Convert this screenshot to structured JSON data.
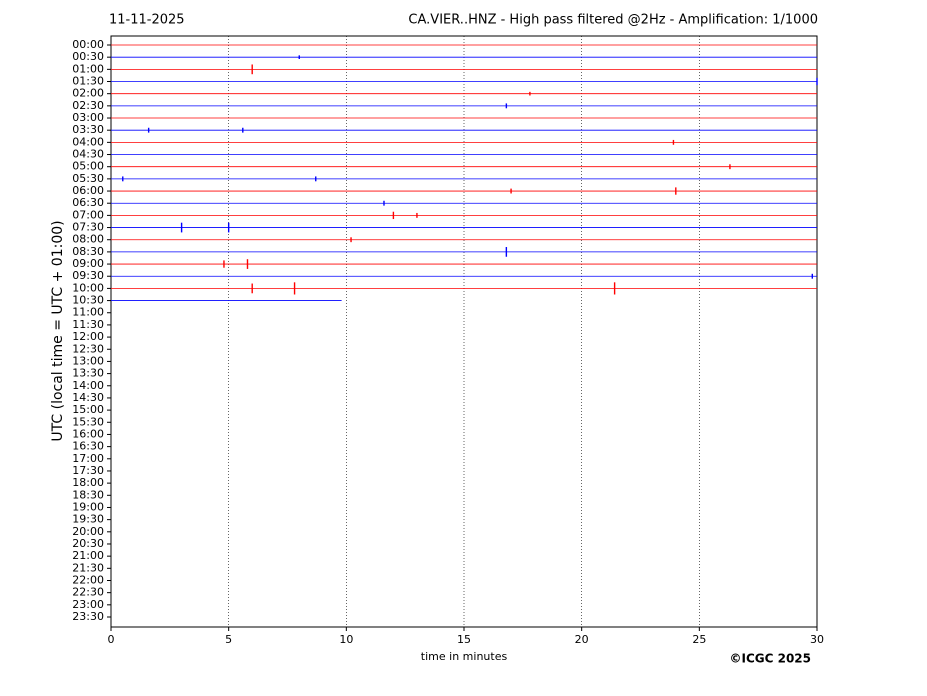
{
  "chart_data": {
    "type": "helicorder",
    "date": "11-11-2025",
    "title": "CA.VIER..HNZ - High pass filtered @2Hz - Amplification: 1/1000",
    "ylabel": "UTC (local time = UTC + 01:00)",
    "xlabel": "time in minutes",
    "credit": "©ICGC 2025",
    "xlim": [
      0,
      30
    ],
    "xticks": [
      0,
      5,
      10,
      15,
      20,
      25,
      30
    ],
    "grid": true,
    "categories": [
      "00:00",
      "00:30",
      "01:00",
      "01:30",
      "02:00",
      "02:30",
      "03:00",
      "03:30",
      "04:00",
      "04:30",
      "05:00",
      "05:30",
      "06:00",
      "06:30",
      "07:00",
      "07:30",
      "08:00",
      "08:30",
      "09:00",
      "09:30",
      "10:00",
      "10:30",
      "11:00",
      "11:30",
      "12:00",
      "12:30",
      "13:00",
      "13:30",
      "14:00",
      "14:30",
      "15:00",
      "15:30",
      "16:00",
      "16:30",
      "17:00",
      "17:30",
      "18:00",
      "18:30",
      "19:00",
      "19:30",
      "20:00",
      "20:30",
      "21:00",
      "21:30",
      "22:00",
      "22:30",
      "23:00",
      "23:30"
    ],
    "series": [
      {
        "color": "#ff0000",
        "end": 30,
        "events": {
          "x": [],
          "amp": []
        }
      },
      {
        "color": "#0000ff",
        "end": 30,
        "events": {
          "x": [
            8.0
          ],
          "amp": [
            0.15
          ]
        }
      },
      {
        "color": "#ff0000",
        "end": 30,
        "events": {
          "x": [
            6.0
          ],
          "amp": [
            0.4
          ]
        }
      },
      {
        "color": "#0000ff",
        "end": 30,
        "events": {
          "x": [
            30
          ],
          "amp": [
            0.3
          ]
        }
      },
      {
        "color": "#ff0000",
        "end": 30,
        "events": {
          "x": [
            17.8
          ],
          "amp": [
            0.15
          ]
        }
      },
      {
        "color": "#0000ff",
        "end": 30,
        "events": {
          "x": [
            16.8
          ],
          "amp": [
            0.2
          ]
        }
      },
      {
        "color": "#ff0000",
        "end": 30,
        "events": {
          "x": [],
          "amp": []
        }
      },
      {
        "color": "#0000ff",
        "end": 30,
        "events": {
          "x": [
            1.6,
            5.6
          ],
          "amp": [
            0.2,
            0.2
          ]
        }
      },
      {
        "color": "#ff0000",
        "end": 30,
        "events": {
          "x": [
            23.9
          ],
          "amp": [
            0.2
          ]
        }
      },
      {
        "color": "#0000ff",
        "end": 30,
        "events": {
          "x": [],
          "amp": []
        }
      },
      {
        "color": "#ff0000",
        "end": 30,
        "events": {
          "x": [
            26.3
          ],
          "amp": [
            0.2
          ]
        }
      },
      {
        "color": "#0000ff",
        "end": 30,
        "events": {
          "x": [
            0.5,
            8.7
          ],
          "amp": [
            0.2,
            0.2
          ]
        }
      },
      {
        "color": "#ff0000",
        "end": 30,
        "events": {
          "x": [
            17.0,
            24.0
          ],
          "amp": [
            0.2,
            0.3
          ]
        }
      },
      {
        "color": "#0000ff",
        "end": 30,
        "events": {
          "x": [
            11.6
          ],
          "amp": [
            0.2
          ]
        }
      },
      {
        "color": "#ff0000",
        "end": 30,
        "events": {
          "x": [
            12.0,
            13.0
          ],
          "amp": [
            0.3,
            0.2
          ]
        }
      },
      {
        "color": "#0000ff",
        "end": 30,
        "events": {
          "x": [
            3.0,
            5.0
          ],
          "amp": [
            0.4,
            0.4
          ]
        }
      },
      {
        "color": "#ff0000",
        "end": 30,
        "events": {
          "x": [
            10.2
          ],
          "amp": [
            0.2
          ]
        }
      },
      {
        "color": "#0000ff",
        "end": 30,
        "events": {
          "x": [
            16.8
          ],
          "amp": [
            0.4
          ]
        }
      },
      {
        "color": "#ff0000",
        "end": 30,
        "events": {
          "x": [
            4.8,
            5.8
          ],
          "amp": [
            0.3,
            0.4
          ]
        }
      },
      {
        "color": "#0000ff",
        "end": 30,
        "events": {
          "x": [
            29.8
          ],
          "amp": [
            0.2
          ]
        }
      },
      {
        "color": "#ff0000",
        "end": 30,
        "events": {
          "x": [
            6.0,
            7.8,
            21.4
          ],
          "amp": [
            0.4,
            0.5,
            0.5
          ]
        }
      },
      {
        "color": "#0000ff",
        "end": 9.8,
        "events": {
          "x": [],
          "amp": []
        }
      }
    ]
  }
}
